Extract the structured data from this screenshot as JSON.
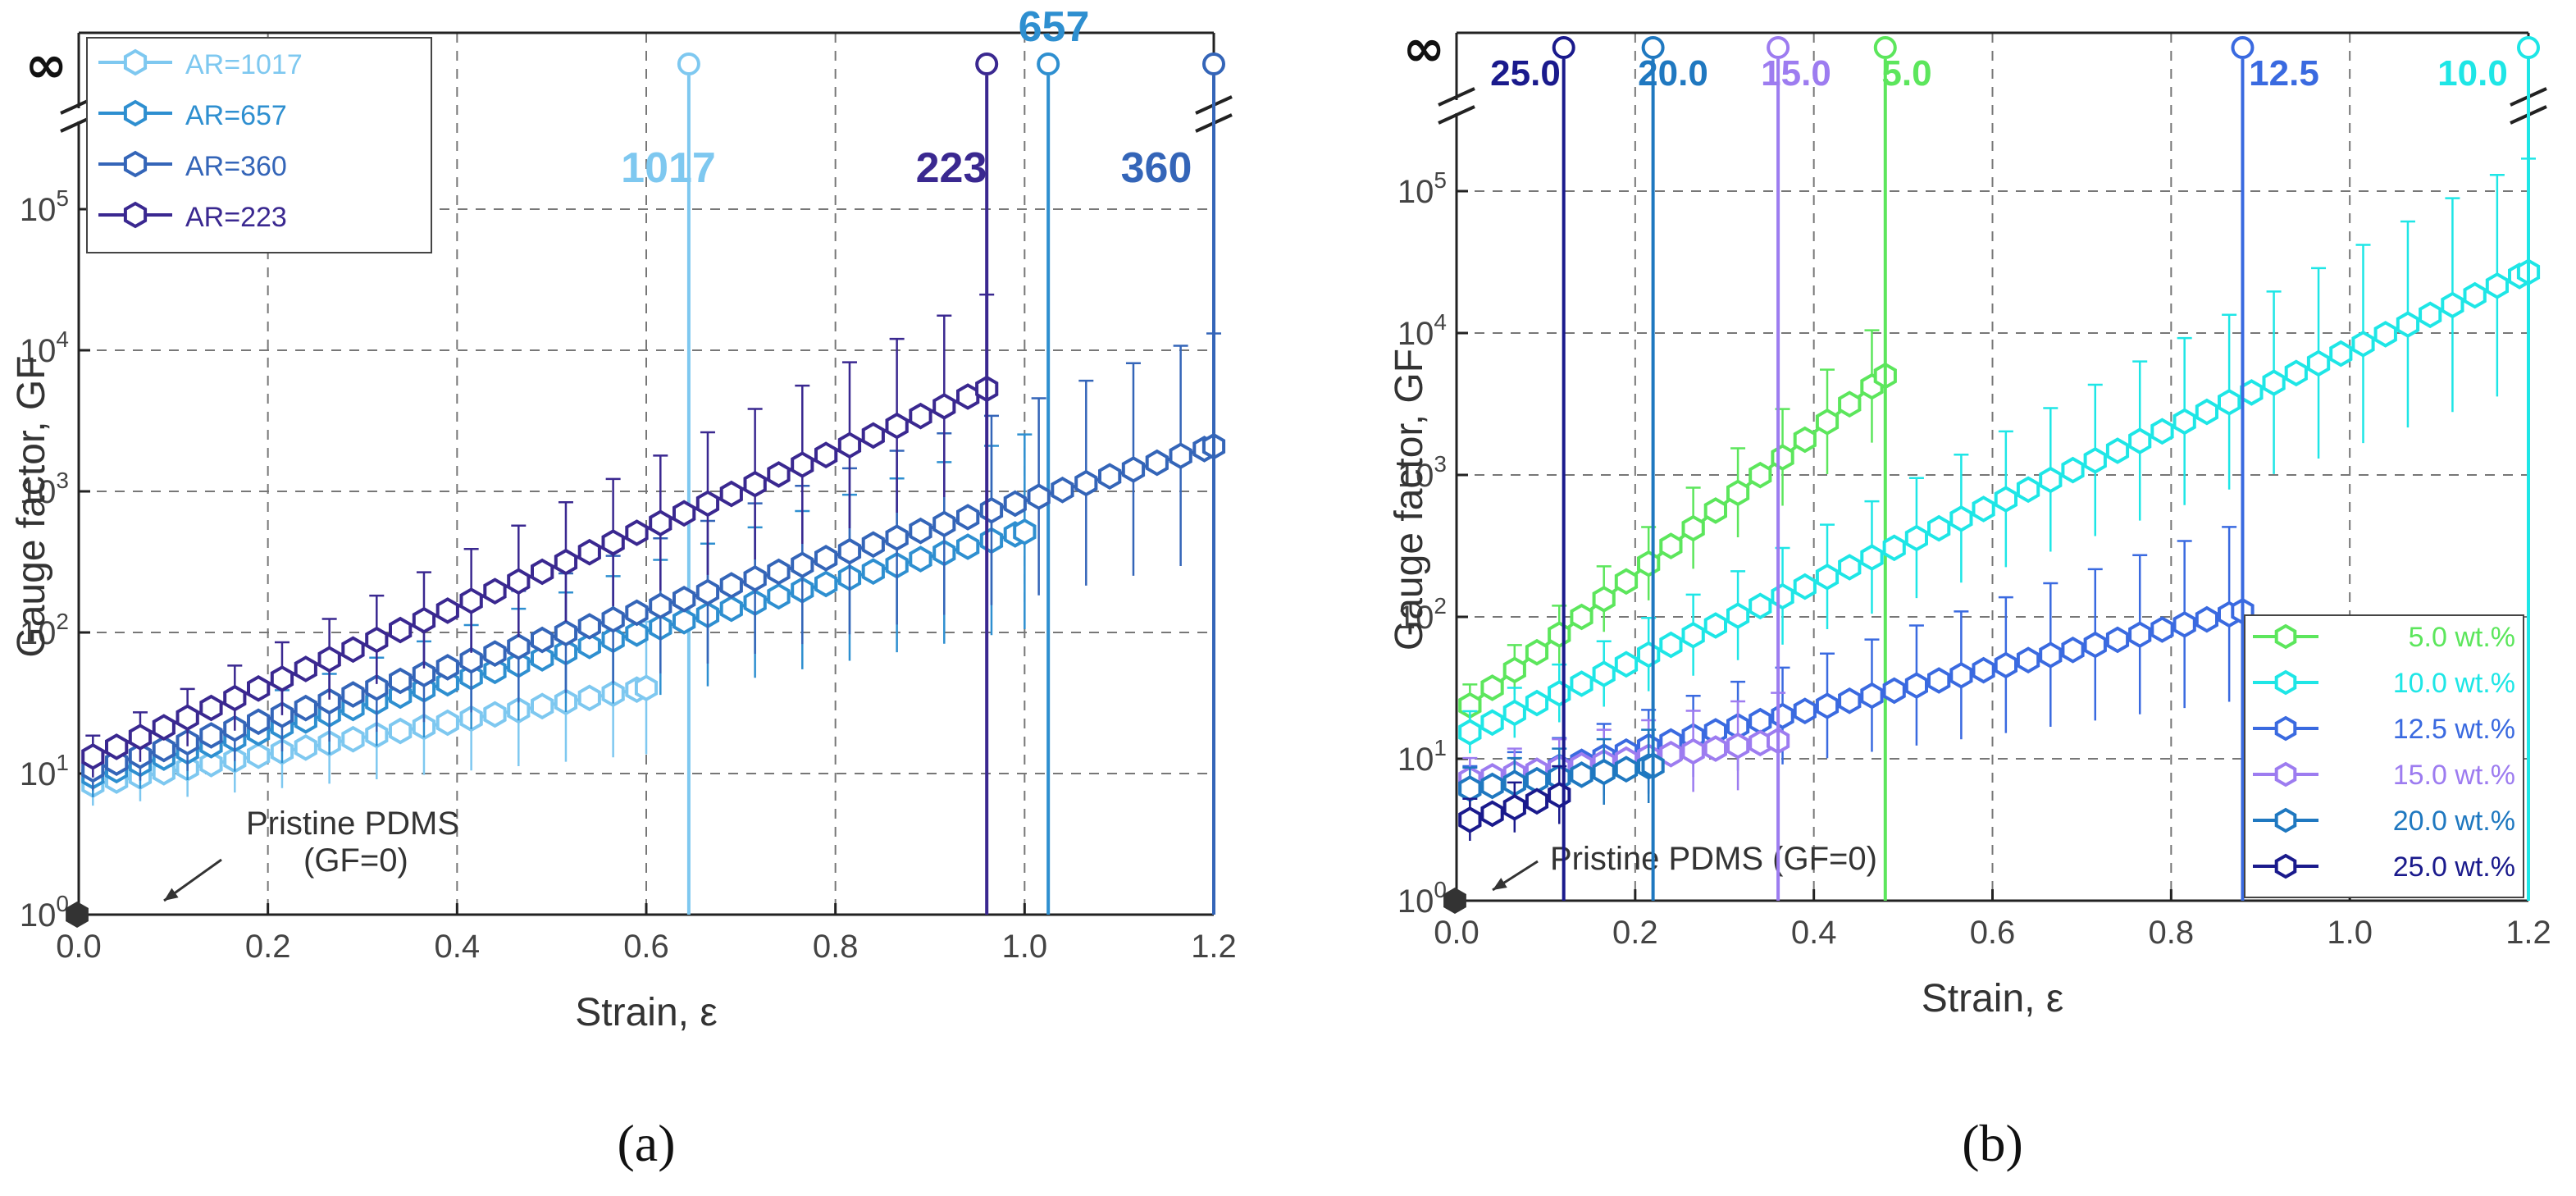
{
  "chart_data": [
    {
      "id": "a",
      "type": "line",
      "panel_caption": "(a)",
      "xlabel": "Strain, ε",
      "ylabel": "Gauge factor, GF",
      "xlim": [
        0,
        1.2
      ],
      "x_ticks": [
        "0.0",
        "0.2",
        "0.4",
        "0.6",
        "0.8",
        "1.0",
        "1.2"
      ],
      "y_tick_exponents": [
        "0",
        "1",
        "2",
        "3",
        "4",
        "5"
      ],
      "infinity_label": "∞",
      "annotation": {
        "line1": "Pristine PDMS",
        "line2": "(GF=0)"
      },
      "failure_labels": [
        "1017",
        "223",
        "360",
        "657"
      ],
      "series": [
        {
          "name": "AR=1017",
          "color": "#7EC8F0",
          "start": 8,
          "rate": 2.7,
          "max_x": 0.6,
          "fail_x": 0.645,
          "label": "1017"
        },
        {
          "name": "AR=657",
          "color": "#2E8FD0",
          "start": 9,
          "rate": 4.05,
          "max_x": 1.0,
          "fail_x": 1.025,
          "label": "657"
        },
        {
          "name": "AR=360",
          "color": "#3465B8",
          "start": 10,
          "rate": 4.45,
          "max_x": 1.2,
          "fail_x": 1.2,
          "label": "360"
        },
        {
          "name": "AR=223",
          "color": "#3A2890",
          "start": 12,
          "rate": 6.35,
          "max_x": 0.96,
          "fail_x": 0.96,
          "label": "223"
        }
      ]
    },
    {
      "id": "b",
      "type": "line",
      "panel_caption": "(b)",
      "xlabel": "Strain, ε",
      "ylabel": "Gauge factor, GF",
      "xlim": [
        0,
        1.2
      ],
      "x_ticks": [
        "0.0",
        "0.2",
        "0.4",
        "0.6",
        "0.8",
        "1.0",
        "1.2"
      ],
      "y_tick_exponents": [
        "0",
        "1",
        "2",
        "3",
        "4",
        "5"
      ],
      "infinity_label": "∞",
      "annotation": {
        "line1": "Pristine PDMS (GF=0)"
      },
      "failure_labels": [
        "25.0",
        "20.0",
        "15.0",
        "5.0",
        "12.5",
        "10.0"
      ],
      "series": [
        {
          "name": "5.0 wt.%",
          "color": "#5CE65C",
          "start": 20,
          "rate": 11.5,
          "max_x": 0.48,
          "fail_x": 0.48,
          "label": "5.0"
        },
        {
          "name": "10.0 wt.%",
          "color": "#1EE6E6",
          "start": 14,
          "rate": 6.3,
          "max_x": 1.2,
          "fail_x": 1.2,
          "label": "10.0"
        },
        {
          "name": "12.5 wt.%",
          "color": "#3A6AE0",
          "start": 6,
          "rate": 3.3,
          "max_x": 0.88,
          "fail_x": 0.88,
          "label": "12.5"
        },
        {
          "name": "15.0 wt.%",
          "color": "#9D7CF0",
          "start": 7,
          "rate": 1.8,
          "max_x": 0.36,
          "fail_x": 0.36,
          "label": "15.0"
        },
        {
          "name": "20.0 wt.%",
          "color": "#1F78C0",
          "start": 6,
          "rate": 1.8,
          "max_x": 0.22,
          "fail_x": 0.22,
          "label": "20.0"
        },
        {
          "name": "25.0 wt.%",
          "color": "#1A1A8C",
          "start": 3.5,
          "rate": 4.0,
          "max_x": 0.12,
          "fail_x": 0.12,
          "label": "25.0"
        }
      ]
    }
  ]
}
